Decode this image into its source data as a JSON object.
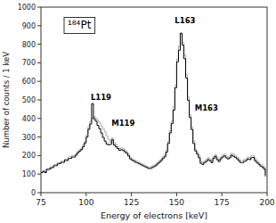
{
  "chart_data": {
    "type": "step",
    "x_label": "Energy of electrons [keV]",
    "y_label": "Number of counts / 1 keV",
    "xlim": [
      75,
      200
    ],
    "ylim": [
      0,
      1000
    ],
    "xticks": [
      75,
      100,
      125,
      150,
      175,
      200
    ],
    "yticks": [
      0,
      100,
      200,
      300,
      400,
      500,
      600,
      700,
      800,
      900,
      1000
    ],
    "annotations": [
      {
        "text": "L119",
        "x": 102.5,
        "y": 492
      },
      {
        "text": "M119",
        "x": 114,
        "y": 350
      },
      {
        "text": "L163",
        "x": 149,
        "y": 905
      },
      {
        "text": "M163",
        "x": 160,
        "y": 432
      },
      {
        "text": "¹⁸⁴Pt"
      }
    ],
    "x": [
      75,
      76,
      77,
      78,
      79,
      80,
      81,
      82,
      83,
      84,
      85,
      86,
      87,
      88,
      89,
      90,
      91,
      92,
      93,
      94,
      95,
      96,
      97,
      98,
      99,
      100,
      101,
      102,
      103,
      104,
      105,
      106,
      107,
      108,
      109,
      110,
      111,
      112,
      113,
      114,
      115,
      116,
      117,
      118,
      119,
      120,
      121,
      122,
      123,
      124,
      125,
      126,
      127,
      128,
      129,
      130,
      131,
      132,
      133,
      134,
      135,
      136,
      137,
      138,
      139,
      140,
      141,
      142,
      143,
      144,
      145,
      146,
      147,
      148,
      149,
      150,
      151,
      152,
      153,
      154,
      155,
      156,
      157,
      158,
      159,
      160,
      161,
      162,
      163,
      164,
      165,
      166,
      167,
      168,
      169,
      170,
      171,
      172,
      173,
      174,
      175,
      176,
      177,
      178,
      179,
      180,
      181,
      182,
      183,
      184,
      185,
      186,
      187,
      188,
      189,
      190,
      191,
      192,
      193,
      194,
      195,
      196,
      197,
      198,
      199
    ],
    "series": [
      {
        "color": "#aaaaaa",
        "values": [
          110,
          118,
          112,
          130,
          130,
          140,
          140,
          152,
          150,
          162,
          163,
          170,
          170,
          182,
          180,
          192,
          193,
          200,
          200,
          210,
          222,
          232,
          240,
          258,
          278,
          312,
          355,
          385,
          400,
          410,
          400,
          390,
          378,
          360,
          345,
          328,
          305,
          288,
          272,
          295,
          272,
          260,
          248,
          238,
          242,
          238,
          230,
          222,
          208,
          192,
          183,
          178,
          172,
          168,
          162,
          158,
          153,
          148,
          143,
          138,
          138,
          143,
          148,
          153,
          162,
          172,
          180,
          193,
          202,
          228,
          278,
          335,
          385,
          462,
          580,
          720,
          790,
          855,
          810,
          742,
          635,
          515,
          420,
          352,
          278,
          235,
          218,
          198,
          168,
          162,
          172,
          178,
          188,
          182,
          172,
          195,
          205,
          188,
          178,
          192,
          202,
          208,
          198,
          192,
          198,
          212,
          208,
          200,
          192,
          182,
          172,
          172,
          178,
          182,
          192,
          188,
          198,
          200,
          182,
          172,
          162,
          152,
          148,
          138,
          98
        ]
      },
      {
        "color": "#000000",
        "values": [
          108,
          115,
          108,
          125,
          125,
          133,
          135,
          145,
          145,
          155,
          157,
          163,
          163,
          175,
          173,
          183,
          185,
          192,
          192,
          202,
          215,
          224,
          232,
          248,
          268,
          300,
          342,
          370,
          480,
          398,
          385,
          362,
          345,
          322,
          298,
          278,
          262,
          258,
          260,
          285,
          258,
          248,
          238,
          228,
          232,
          228,
          220,
          212,
          198,
          182,
          175,
          170,
          163,
          160,
          155,
          150,
          145,
          140,
          136,
          130,
          130,
          135,
          140,
          145,
          155,
          163,
          172,
          184,
          193,
          218,
          265,
          322,
          372,
          445,
          565,
          705,
          768,
          860,
          795,
          722,
          618,
          498,
          405,
          340,
          265,
          225,
          208,
          188,
          158,
          152,
          162,
          168,
          178,
          172,
          162,
          185,
          196,
          178,
          168,
          182,
          192,
          198,
          188,
          182,
          188,
          202,
          196,
          190,
          182,
          172,
          162,
          162,
          168,
          173,
          182,
          178,
          188,
          190,
          172,
          162,
          153,
          143,
          138,
          128,
          88
        ]
      }
    ]
  }
}
